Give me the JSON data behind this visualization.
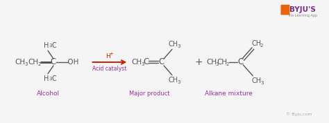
{
  "bg_color": "#f5f5f5",
  "dark_color": "#555555",
  "purple_color": "#9b30a0",
  "red_color": "#cc2200",
  "byju_purple": "#7b2d8b",
  "byju_orange": "#e8630a",
  "alcohol_label": "Alcohol",
  "acid_label": "Acid catalyst",
  "major_label": "Major product",
  "alkane_label": "Alkane mixture",
  "byju_watermark": "© Byju.com",
  "figsize": [
    4.74,
    1.78
  ],
  "dpi": 100
}
